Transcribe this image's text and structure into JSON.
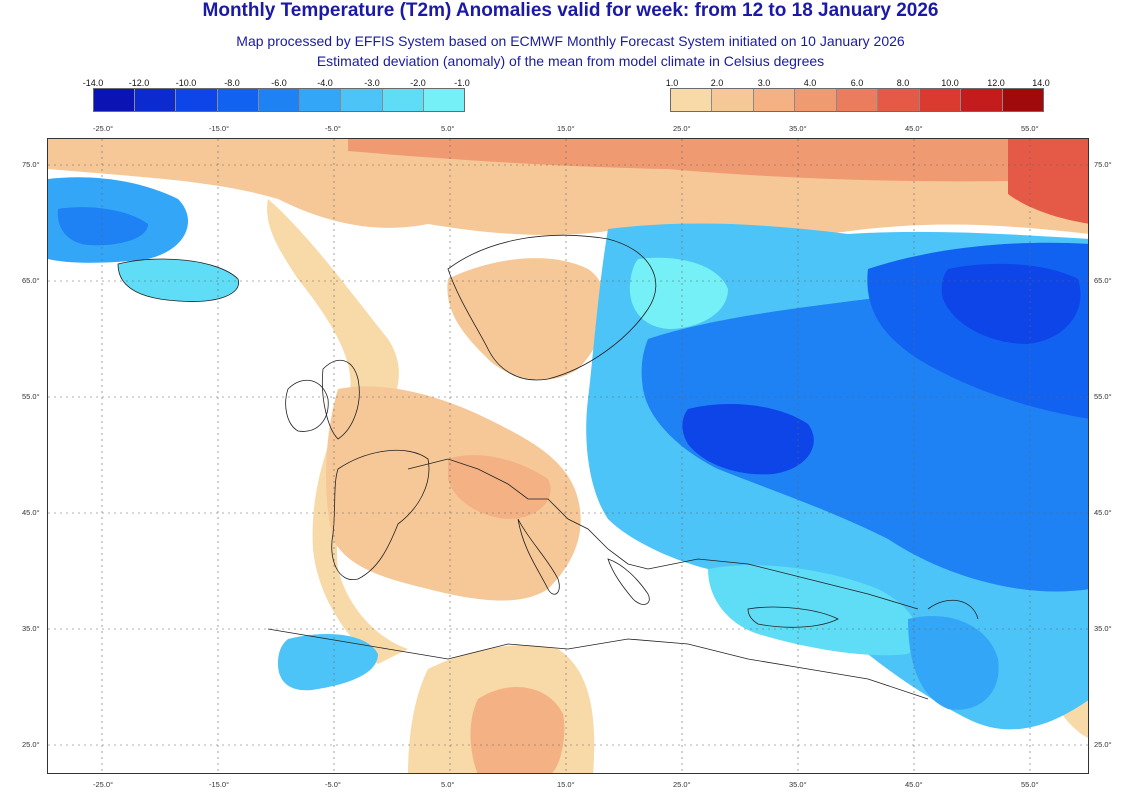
{
  "header": {
    "title": "Monthly Temperature (T2m) Anomalies valid for week: from 12 to 18 January 2026",
    "subtitle_line1": "Map processed by EFFIS System based on ECMWF Monthly Forecast System initiated on 10 January 2026",
    "subtitle_line2": "Estimated deviation (anomaly) of the mean from model climate in Celsius degrees"
  },
  "legend": {
    "cold": {
      "ticks": [
        "-14.0",
        "-12.0",
        "-10.0",
        "-8.0",
        "-6.0",
        "-4.0",
        "-3.0",
        "-2.0",
        "-1.0"
      ],
      "colors": [
        "#0a14b4",
        "#0b2ad0",
        "#0d45e8",
        "#1262f2",
        "#1e82f5",
        "#33a6f7",
        "#4cc4f7",
        "#5fdcf6",
        "#74f0f6"
      ]
    },
    "warm": {
      "ticks": [
        "1.0",
        "2.0",
        "3.0",
        "4.0",
        "6.0",
        "8.0",
        "10.0",
        "12.0",
        "14.0"
      ],
      "colors": [
        "#f8d9a8",
        "#f6c797",
        "#f3b184",
        "#f09a72",
        "#ec7c5e",
        "#e55a46",
        "#da3a30",
        "#c41c1c",
        "#a00a0a"
      ]
    }
  },
  "map": {
    "lon_labels": [
      "-25.0°",
      "-15.0°",
      "-5.0°",
      "5.0°",
      "15.0°",
      "25.0°",
      "35.0°",
      "45.0°",
      "55.0°"
    ],
    "lat_labels": [
      "75.0°",
      "65.0°",
      "55.0°",
      "45.0°",
      "35.0°",
      "25.0°"
    ]
  }
}
